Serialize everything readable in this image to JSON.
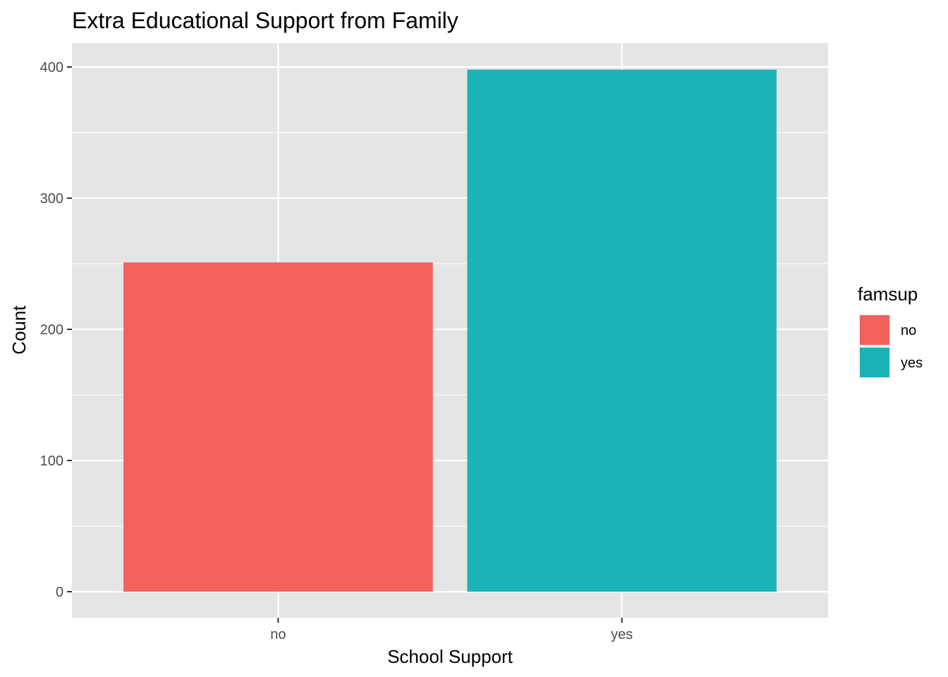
{
  "chart_data": {
    "type": "bar",
    "title": "Extra Educational Support from Family",
    "xlabel": "School Support",
    "ylabel": "Count",
    "categories": [
      "no",
      "yes"
    ],
    "values": [
      251,
      398
    ],
    "fill_group": [
      "no",
      "yes"
    ],
    "ylim": [
      0,
      420
    ],
    "yticks": [
      0,
      100,
      200,
      300,
      400
    ],
    "grid": true,
    "legend": {
      "title": "famsup",
      "position": "right",
      "entries": [
        {
          "label": "no",
          "color": "#F2615C"
        },
        {
          "label": "yes",
          "color": "#1AB3B8"
        }
      ]
    },
    "colors": {
      "panel": "#E5E5E5",
      "grid": "#FFFFFF",
      "tick_text": "#4D4D4D",
      "tick_mark": "#333333"
    }
  }
}
